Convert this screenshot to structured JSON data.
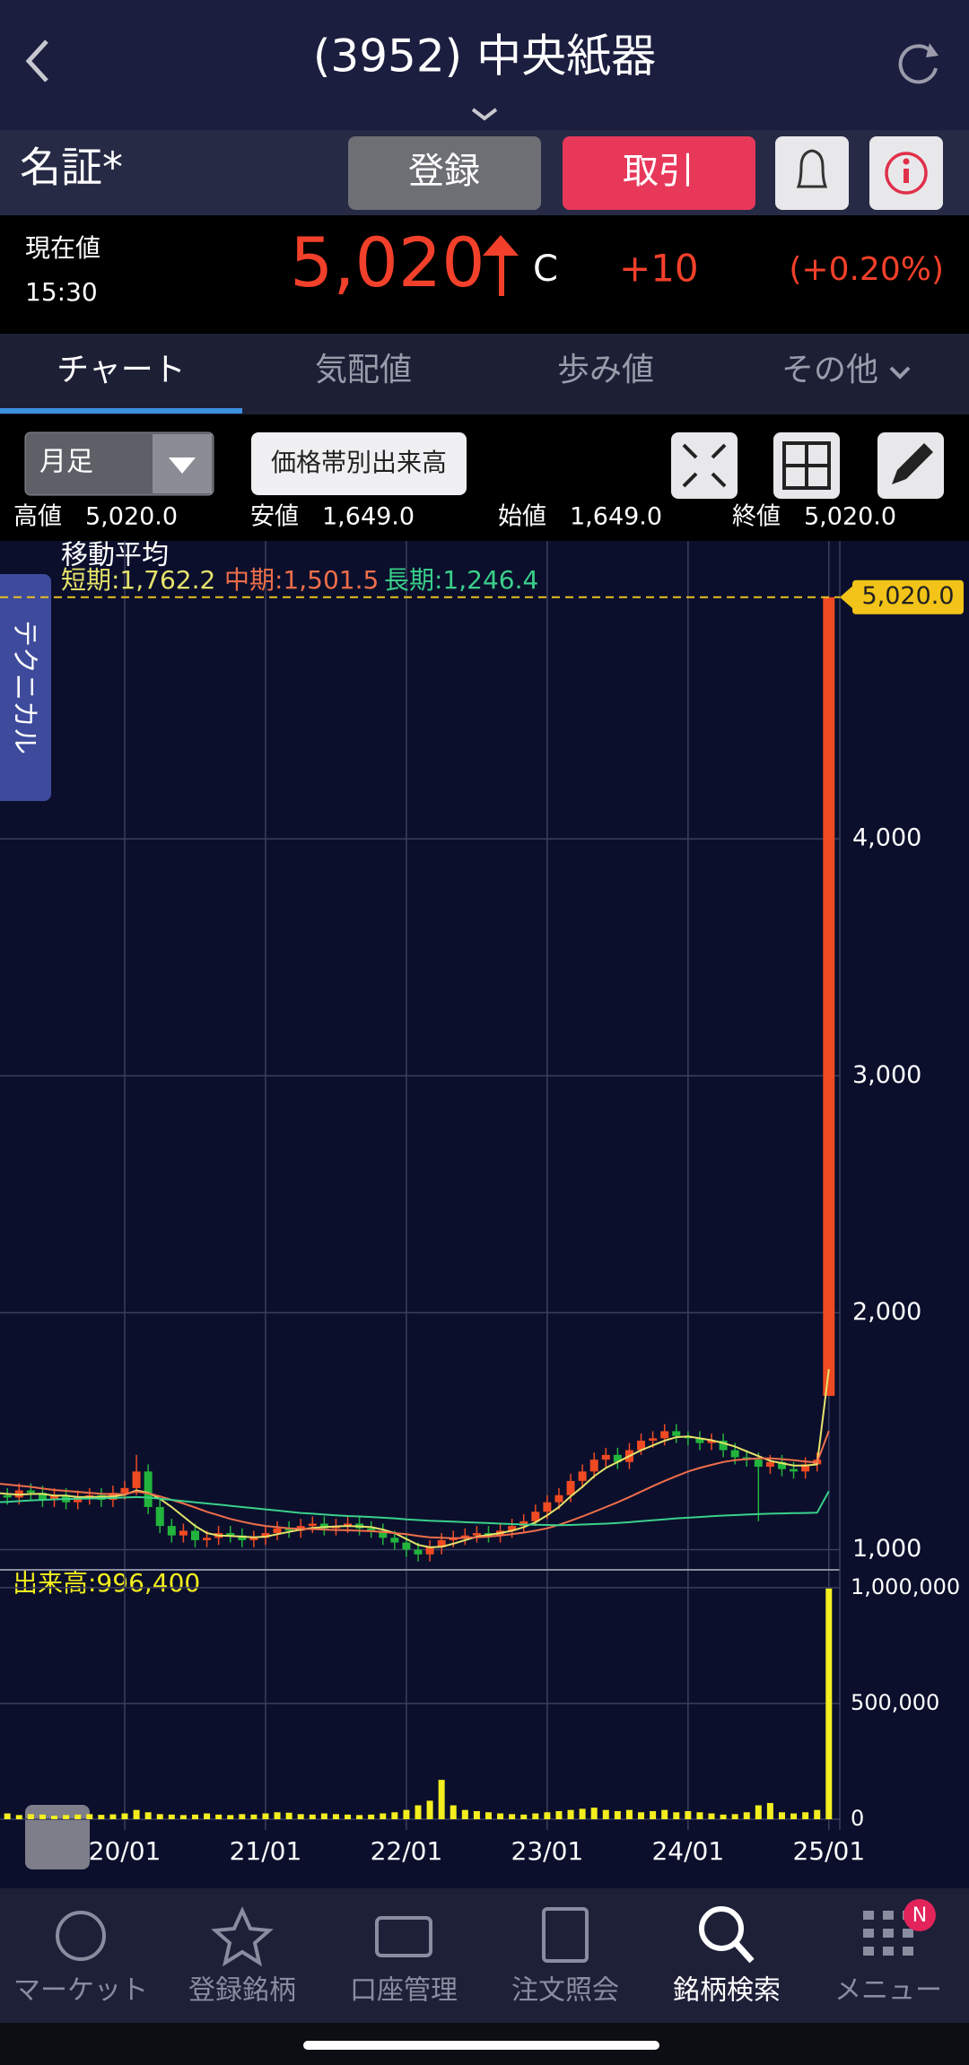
{
  "header": {
    "title": "(3952) 中央紙器",
    "market": "名証*",
    "register_button": "登録",
    "trade_button": "取引"
  },
  "quote": {
    "label": "現在値",
    "time": "15:30",
    "price": "5,020",
    "flag": "C",
    "change": "+10",
    "change_pct": "(+0.20%)"
  },
  "tabs": [
    "チャート",
    "気配値",
    "歩み値",
    "その他"
  ],
  "toolbar": {
    "period": "月足",
    "volume_by_price": "価格帯別出来高"
  },
  "ohlc": [
    {
      "label": "高値",
      "value": "5,020.0"
    },
    {
      "label": "安値",
      "value": "1,649.0"
    },
    {
      "label": "始値",
      "value": "1,649.0"
    },
    {
      "label": "終値",
      "value": "5,020.0"
    }
  ],
  "side_tab": "テクニカル",
  "chart_data": {
    "type": "candlestick",
    "ma_title": "移動平均",
    "up_color": "#f04a22",
    "down_color": "#22b43c",
    "grid": true,
    "categories": [
      null,
      null,
      null,
      null,
      null,
      null,
      null,
      null,
      null,
      null,
      null,
      "20/01",
      null,
      null,
      null,
      null,
      null,
      null,
      null,
      null,
      null,
      null,
      null,
      "21/01",
      null,
      null,
      null,
      null,
      null,
      null,
      null,
      null,
      null,
      null,
      null,
      "22/01",
      null,
      null,
      null,
      null,
      null,
      null,
      null,
      null,
      null,
      null,
      null,
      "23/01",
      null,
      null,
      null,
      null,
      null,
      null,
      null,
      null,
      null,
      null,
      null,
      "24/01",
      null,
      null,
      null,
      null,
      null,
      null,
      null,
      null,
      null,
      null,
      null,
      "25/01"
    ],
    "open": [
      1240,
      1230,
      1220,
      1250,
      1240,
      1210,
      1230,
      1200,
      1220,
      1230,
      1210,
      1240,
      1260,
      1330,
      1180,
      1100,
      1060,
      1080,
      1040,
      1050,
      1070,
      1060,
      1040,
      1050,
      1070,
      1090,
      1080,
      1100,
      1110,
      1090,
      1100,
      1110,
      1090,
      1080,
      1050,
      1030,
      1000,
      980,
      1010,
      1040,
      1050,
      1060,
      1070,
      1060,
      1080,
      1100,
      1120,
      1160,
      1200,
      1230,
      1290,
      1330,
      1380,
      1400,
      1370,
      1420,
      1460,
      1470,
      1500,
      1480,
      1470,
      1450,
      1460,
      1420,
      1390,
      1380,
      1350,
      1370,
      1340,
      1330,
      1360,
      1649
    ],
    "high": [
      1270,
      1260,
      1280,
      1280,
      1270,
      1260,
      1260,
      1250,
      1260,
      1260,
      1270,
      1290,
      1400,
      1360,
      1210,
      1130,
      1110,
      1110,
      1080,
      1100,
      1100,
      1090,
      1080,
      1100,
      1120,
      1120,
      1130,
      1140,
      1140,
      1130,
      1140,
      1140,
      1120,
      1110,
      1080,
      1060,
      1030,
      1040,
      1070,
      1080,
      1090,
      1100,
      1100,
      1110,
      1130,
      1150,
      1190,
      1230,
      1260,
      1320,
      1360,
      1410,
      1430,
      1430,
      1450,
      1490,
      1500,
      1530,
      1530,
      1500,
      1500,
      1490,
      1490,
      1450,
      1420,
      1410,
      1400,
      1400,
      1370,
      1390,
      1410,
      5020
    ],
    "low": [
      1200,
      1190,
      1190,
      1210,
      1180,
      1180,
      1170,
      1170,
      1190,
      1180,
      1180,
      1210,
      1230,
      1150,
      1070,
      1030,
      1030,
      1010,
      1010,
      1020,
      1030,
      1010,
      1010,
      1020,
      1040,
      1050,
      1050,
      1070,
      1060,
      1060,
      1070,
      1060,
      1050,
      1020,
      1000,
      970,
      950,
      950,
      980,
      1010,
      1020,
      1030,
      1030,
      1030,
      1050,
      1070,
      1100,
      1130,
      1170,
      1200,
      1260,
      1300,
      1350,
      1340,
      1340,
      1400,
      1430,
      1440,
      1450,
      1440,
      1420,
      1420,
      1390,
      1360,
      1350,
      1120,
      1320,
      1310,
      1300,
      1300,
      1330,
      1649
    ],
    "close": [
      1230,
      1220,
      1250,
      1240,
      1210,
      1230,
      1200,
      1220,
      1230,
      1210,
      1240,
      1260,
      1330,
      1180,
      1100,
      1060,
      1080,
      1040,
      1050,
      1070,
      1060,
      1040,
      1050,
      1070,
      1090,
      1080,
      1100,
      1110,
      1090,
      1100,
      1110,
      1090,
      1080,
      1050,
      1030,
      1000,
      980,
      1010,
      1040,
      1050,
      1060,
      1070,
      1060,
      1080,
      1100,
      1120,
      1160,
      1200,
      1230,
      1290,
      1330,
      1380,
      1400,
      1370,
      1420,
      1460,
      1470,
      1500,
      1480,
      1470,
      1450,
      1460,
      1420,
      1390,
      1380,
      1350,
      1370,
      1340,
      1330,
      1360,
      1380,
      5020
    ],
    "series": [
      {
        "name": "短期:1,762.2",
        "color": "#e6e36a",
        "values": [
          1240,
          1235,
          1232,
          1235,
          1235,
          1228,
          1228,
          1222,
          1222,
          1223,
          1224,
          1232,
          1250,
          1240,
          1215,
          1180,
          1140,
          1100,
          1070,
          1060,
          1058,
          1055,
          1052,
          1055,
          1065,
          1075,
          1085,
          1092,
          1095,
          1098,
          1100,
          1098,
          1095,
          1085,
          1070,
          1045,
          1020,
          1010,
          1012,
          1025,
          1040,
          1055,
          1062,
          1070,
          1080,
          1095,
          1115,
          1145,
          1180,
          1225,
          1265,
          1310,
          1345,
          1370,
          1395,
          1420,
          1440,
          1460,
          1475,
          1478,
          1470,
          1462,
          1450,
          1435,
          1415,
          1395,
          1375,
          1365,
          1355,
          1355,
          1360,
          1762.2
        ]
      },
      {
        "name": "中期:1,501.5",
        "color": "#ef6e4a",
        "values": [
          1280,
          1275,
          1270,
          1265,
          1258,
          1252,
          1248,
          1244,
          1240,
          1236,
          1234,
          1235,
          1245,
          1238,
          1225,
          1210,
          1195,
          1178,
          1160,
          1145,
          1130,
          1118,
          1108,
          1100,
          1095,
          1090,
          1088,
          1087,
          1085,
          1083,
          1082,
          1080,
          1078,
          1075,
          1070,
          1065,
          1058,
          1052,
          1050,
          1048,
          1050,
          1052,
          1055,
          1060,
          1065,
          1072,
          1080,
          1090,
          1105,
          1122,
          1140,
          1160,
          1180,
          1200,
          1222,
          1245,
          1268,
          1290,
          1310,
          1330,
          1345,
          1358,
          1370,
          1378,
          1382,
          1385,
          1385,
          1382,
          1378,
          1372,
          1368,
          1501.5
        ]
      },
      {
        "name": "長期:1,246.4",
        "color": "#3ad08a",
        "values": [
          1200,
          1202,
          1205,
          1208,
          1210,
          1212,
          1214,
          1215,
          1216,
          1217,
          1218,
          1220,
          1222,
          1220,
          1215,
          1210,
          1205,
          1200,
          1195,
          1190,
          1185,
          1180,
          1175,
          1170,
          1165,
          1160,
          1155,
          1152,
          1148,
          1145,
          1142,
          1140,
          1138,
          1135,
          1132,
          1128,
          1125,
          1122,
          1120,
          1118,
          1116,
          1114,
          1112,
          1110,
          1108,
          1106,
          1105,
          1104,
          1103,
          1104,
          1106,
          1108,
          1110,
          1113,
          1116,
          1120,
          1124,
          1128,
          1132,
          1135,
          1138,
          1141,
          1144,
          1146,
          1148,
          1150,
          1152,
          1153,
          1154,
          1155,
          1156,
          1246.4
        ]
      }
    ],
    "ylim": [
      930,
      5250
    ],
    "yticks": [
      {
        "value": 1000,
        "label": "1,000"
      },
      {
        "value": 2000,
        "label": "2,000"
      },
      {
        "value": 3000,
        "label": "3,000"
      },
      {
        "value": 4000,
        "label": "4,000"
      }
    ],
    "last_price_label": "5,020.0",
    "volume": {
      "label": "出来高:996,400",
      "color": "#f3ee1e",
      "ylim": [
        0,
        1050000
      ],
      "yticks": [
        0,
        {
          "value": 500000,
          "label": "500,000"
        },
        {
          "value": 1000000,
          "label": "1,000,000"
        }
      ],
      "values": [
        20000,
        25000,
        18000,
        22000,
        20000,
        15000,
        18000,
        20000,
        22000,
        19000,
        21000,
        25000,
        40000,
        30000,
        22000,
        20000,
        18000,
        20000,
        25000,
        20000,
        18000,
        22000,
        20000,
        25000,
        30000,
        28000,
        22000,
        20000,
        25000,
        22000,
        20000,
        18000,
        20000,
        25000,
        30000,
        40000,
        60000,
        80000,
        170000,
        60000,
        40000,
        35000,
        30000,
        25000,
        22000,
        20000,
        25000,
        30000,
        35000,
        40000,
        45000,
        50000,
        40000,
        35000,
        40000,
        30000,
        35000,
        40000,
        30000,
        35000,
        30000,
        25000,
        20000,
        22000,
        30000,
        60000,
        70000,
        30000,
        25000,
        30000,
        40000,
        996400
      ]
    }
  },
  "nav": {
    "items": [
      "マーケット",
      "登録銘柄",
      "口座管理",
      "注文照会",
      "銘柄検索",
      "メニュー"
    ],
    "active": 4,
    "badge": "N"
  }
}
